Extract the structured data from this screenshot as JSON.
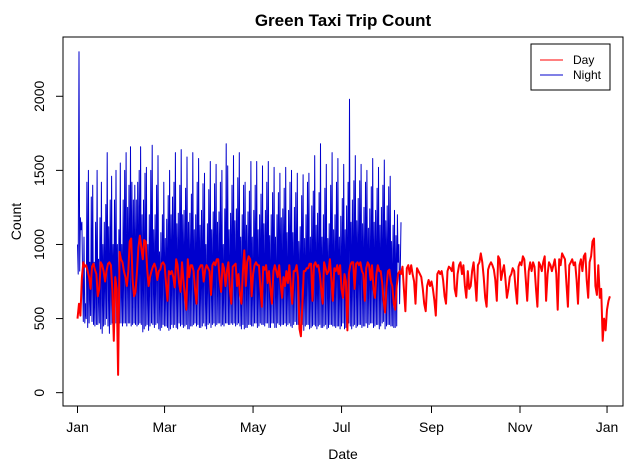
{
  "chart_data": {
    "type": "line",
    "title": "Green Taxi Trip Count",
    "xlabel": "Date",
    "ylabel": "Count",
    "x_ticks": [
      {
        "day": 0,
        "label": "Jan"
      },
      {
        "day": 60,
        "label": "Mar"
      },
      {
        "day": 121,
        "label": "May"
      },
      {
        "day": 182,
        "label": "Jul"
      },
      {
        "day": 244,
        "label": "Sep"
      },
      {
        "day": 305,
        "label": "Nov"
      },
      {
        "day": 365,
        "label": "Jan"
      }
    ],
    "xlim": [
      -10,
      376
    ],
    "ylim": [
      -90,
      2400
    ],
    "y_ticks": [
      0,
      500,
      1000,
      1500,
      2000
    ],
    "grid": false,
    "legend_position": "top-right",
    "series": [
      {
        "name": "Day",
        "color": "#ff0000",
        "x_step_days": 1,
        "values": [
          500,
          600,
          520,
          780,
          880,
          850,
          860,
          820,
          780,
          700,
          850,
          870,
          830,
          800,
          650,
          700,
          880,
          860,
          820,
          750,
          820,
          870,
          880,
          860,
          700,
          350,
          780,
          700,
          120,
          950,
          900,
          880,
          820,
          780,
          720,
          820,
          1020,
          1040,
          760,
          650,
          680,
          820,
          980,
          1060,
          980,
          900,
          1030,
          1020,
          840,
          720,
          780,
          820,
          850,
          870,
          840,
          760,
          820,
          830,
          870,
          880,
          860,
          740,
          620,
          820,
          800,
          820,
          780,
          710,
          900,
          860,
          740,
          680,
          880,
          760,
          650,
          560,
          900,
          780,
          860,
          860,
          820,
          700,
          600,
          820,
          840,
          860,
          860,
          750,
          830,
          860,
          840,
          820,
          660,
          860,
          880,
          860,
          900,
          900,
          760,
          680,
          870,
          840,
          720,
          820,
          880,
          700,
          600,
          850,
          860,
          870,
          720,
          800,
          660,
          600,
          820,
          960,
          720,
          880,
          920,
          900,
          650,
          800,
          860,
          880,
          860,
          860,
          720,
          580,
          850,
          830,
          860,
          740,
          820,
          700,
          600,
          820,
          860,
          820,
          780,
          860,
          740,
          640,
          780,
          720,
          820,
          740,
          860,
          720,
          600,
          820,
          820,
          860,
          780,
          430,
          380,
          600,
          820,
          820,
          840,
          840,
          870,
          870,
          620,
          860,
          880,
          850,
          860,
          800,
          700,
          600,
          880,
          840,
          800,
          820,
          900,
          760,
          620,
          840,
          820,
          860,
          800,
          860,
          700,
          640,
          800,
          750,
          420,
          800,
          860,
          880,
          880,
          700,
          870,
          880,
          860,
          880,
          820,
          800,
          620,
          840,
          880,
          860,
          760,
          860,
          700,
          640,
          800,
          860,
          820,
          820,
          740,
          620,
          540,
          720,
          820,
          830,
          750,
          720,
          600,
          560,
          720,
          800,
          820,
          800,
          850,
          700,
          550,
          840,
          860,
          800,
          860,
          800,
          750,
          600,
          840,
          820,
          800,
          780,
          700,
          600,
          550,
          720,
          760,
          720,
          750,
          700,
          620,
          520,
          800,
          820,
          800,
          820,
          760,
          650,
          600,
          820,
          850,
          840,
          820,
          880,
          700,
          650,
          800,
          860,
          880,
          800,
          860,
          720,
          640,
          820,
          700,
          720,
          820,
          880,
          760,
          620,
          860,
          880,
          940,
          880,
          780,
          640,
          580,
          830,
          860,
          880,
          860,
          830,
          760,
          620,
          920,
          900,
          760,
          820,
          860,
          760,
          640,
          700,
          780,
          800,
          840,
          820,
          700,
          600,
          850,
          880,
          860,
          920,
          900,
          760,
          620,
          820,
          880,
          820,
          880,
          850,
          700,
          580,
          880,
          860,
          820,
          880,
          920,
          620,
          800,
          880,
          860,
          820,
          860,
          900,
          800,
          560,
          900,
          860,
          940,
          920,
          900,
          740,
          580,
          860,
          880,
          900,
          860,
          880,
          760,
          600,
          860,
          900,
          820,
          920,
          940,
          760,
          640,
          880,
          920,
          1020,
          1040,
          720,
          660,
          860,
          640,
          700,
          350,
          500,
          420,
          560,
          620,
          650
        ]
      },
      {
        "name": "Night",
        "color": "#0000cd",
        "x_step_days": 0.5,
        "values": [
          1000,
          800,
          2300,
          820,
          1180,
          1100,
          1150,
          780,
          480,
          1050,
          470,
          600,
          500,
          1420,
          440,
          1500,
          470,
          880,
          520,
          1320,
          480,
          1400,
          460,
          880,
          450,
          1150,
          460,
          1500,
          460,
          900,
          470,
          1180,
          430,
          1420,
          400,
          1000,
          450,
          1150,
          460,
          1270,
          500,
          1620,
          450,
          1120,
          400,
          1300,
          460,
          1460,
          470,
          1000,
          450,
          1300,
          470,
          1500,
          470,
          1000,
          300,
          1100,
          470,
          1550,
          470,
          1000,
          450,
          1300,
          470,
          1500,
          470,
          1620,
          450,
          1250,
          470,
          1400,
          470,
          1660,
          450,
          1420,
          460,
          1300,
          470,
          1400,
          460,
          1300,
          450,
          1420,
          460,
          1500,
          470,
          1660,
          460,
          1200,
          410,
          1300,
          430,
          1480,
          450,
          1520,
          460,
          1000,
          420,
          1200,
          450,
          1500,
          470,
          1670,
          460,
          1100,
          440,
          1200,
          460,
          1400,
          470,
          1600,
          430,
          950,
          420,
          1080,
          440,
          1200,
          460,
          1420,
          450,
          1040,
          450,
          1170,
          440,
          1330,
          420,
          1500,
          430,
          1200,
          460,
          1320,
          440,
          1420,
          460,
          1620,
          440,
          1140,
          430,
          1210,
          470,
          1400,
          450,
          1640,
          460,
          1200,
          440,
          1230,
          450,
          1380,
          460,
          1590,
          430,
          1150,
          430,
          1210,
          450,
          1340,
          450,
          1620,
          460,
          1100,
          470,
          1200,
          450,
          1420,
          460,
          1580,
          440,
          1130,
          440,
          1230,
          450,
          1410,
          470,
          1480,
          450,
          1000,
          430,
          1140,
          460,
          1370,
          470,
          1560,
          440,
          1100,
          460,
          1220,
          470,
          1410,
          450,
          1540,
          460,
          1150,
          470,
          1220,
          470,
          1420,
          450,
          1500,
          460,
          1000,
          450,
          1240,
          470,
          1680,
          470,
          1530,
          460,
          1100,
          460,
          1210,
          470,
          1400,
          460,
          1600,
          470,
          1160,
          450,
          1240,
          460,
          1450,
          470,
          1620,
          450,
          1050,
          430,
          1200,
          460,
          1400,
          430,
          1420,
          440,
          1130,
          440,
          1220,
          460,
          1360,
          460,
          1560,
          450,
          1050,
          450,
          1230,
          470,
          1400,
          470,
          1560,
          440,
          1100,
          450,
          1200,
          470,
          1340,
          460,
          1530,
          460,
          1140,
          450,
          1230,
          470,
          1420,
          470,
          1560,
          440,
          1060,
          440,
          1200,
          470,
          1350,
          470,
          1520,
          440,
          1050,
          440,
          1200,
          470,
          1350,
          460,
          1480,
          450,
          1180,
          460,
          1240,
          460,
          1380,
          470,
          1520,
          450,
          1080,
          460,
          1230,
          470,
          1420,
          450,
          1500,
          440,
          1080,
          460,
          1250,
          480,
          1350,
          460,
          1480,
          460,
          1020,
          440,
          1120,
          430,
          1330,
          460,
          1470,
          420,
          1040,
          450,
          1200,
          460,
          1420,
          460,
          1480,
          430,
          1050,
          440,
          1260,
          450,
          1360,
          460,
          1600,
          450,
          1130,
          430,
          1210,
          450,
          1350,
          460,
          1680,
          440,
          1050,
          440,
          1200,
          450,
          1380,
          460,
          1540,
          430,
          1040,
          440,
          1140,
          460,
          1400,
          460,
          1620,
          450,
          1100,
          450,
          1200,
          440,
          1420,
          450,
          1580,
          450,
          1050,
          430,
          1190,
          450,
          1310,
          470,
          1540,
          430,
          1100,
          440,
          1260,
          480,
          1420,
          470,
          1980,
          450,
          1150,
          430,
          1300,
          450,
          1430,
          460,
          1600,
          440,
          1160,
          450,
          1310,
          460,
          1430,
          460,
          1540,
          440,
          1140,
          450,
          1250,
          450,
          1420,
          470,
          1500,
          440,
          1110,
          460,
          1240,
          470,
          1390,
          470,
          1580,
          440,
          1150,
          450,
          1230,
          460,
          1380,
          460,
          1520,
          430,
          1130,
          450,
          1250,
          470,
          1400,
          480,
          1570,
          430,
          1160,
          450,
          1260,
          460,
          1390,
          460,
          1460,
          450,
          1020,
          450,
          1130,
          440,
          1230,
          440,
          1060,
          450,
          1200,
          880,
          1000,
          600,
          840,
          1150
        ]
      }
    ]
  }
}
